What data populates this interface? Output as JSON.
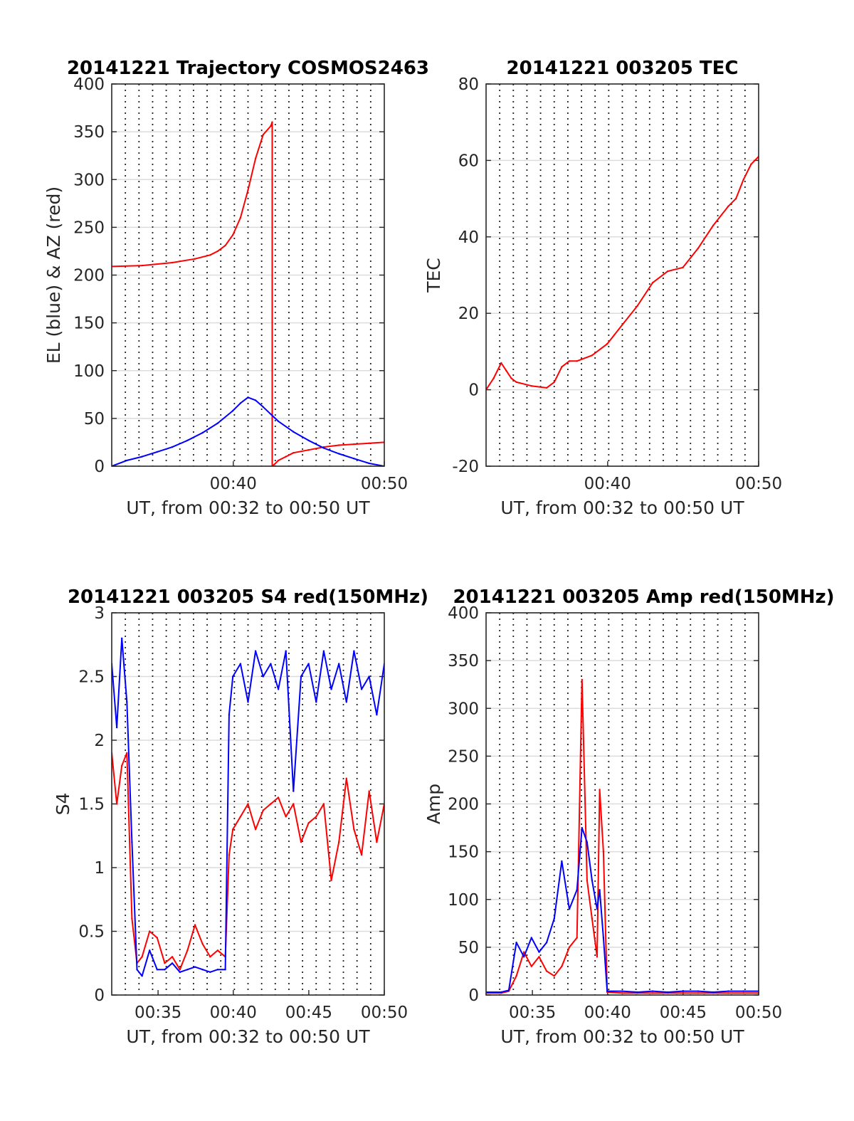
{
  "figure": {
    "title": "",
    "background": "#ffffff"
  },
  "chart_data": [
    {
      "type": "line",
      "title": "20141221 Trajectory COSMOS2463",
      "xlabel": "UT, from 00:32 to 00:50 UT",
      "ylabel": "EL (blue) & AZ (red)",
      "xlim": [
        "00:32",
        "00:50"
      ],
      "ylim": [
        0,
        400
      ],
      "xtick_labels": [
        "00:40",
        "00:50"
      ],
      "ytick_labels": [
        "0",
        "50",
        "100",
        "150",
        "200",
        "250",
        "300",
        "350",
        "400"
      ],
      "grid": "y-solid, x-dotted (every 0.9 min)",
      "series": [
        {
          "color": "#ff0000",
          "x": [
            "00:32:00",
            "00:34:00",
            "00:36:00",
            "00:37:30",
            "00:38:30",
            "00:39:00",
            "00:39:30",
            "00:40:00",
            "00:40:30",
            "00:41:00",
            "00:41:30",
            "00:42:00",
            "00:42:30",
            "00:42:36",
            "00:42:36",
            "00:42:36",
            "00:42:45",
            "00:43:00",
            "00:43:30",
            "00:44:00",
            "00:45:00",
            "00:46:00",
            "00:47:00",
            "00:48:00",
            "00:49:00",
            "00:50:00"
          ],
          "values": [
            209,
            210,
            213,
            217,
            221,
            225,
            231,
            242,
            260,
            289,
            322,
            347,
            356,
            360,
            360,
            0,
            2,
            6,
            10,
            14,
            17,
            20,
            22,
            23,
            24,
            25
          ]
        },
        {
          "color": "#0000ff",
          "x": [
            "00:32:00",
            "00:33:00",
            "00:34:00",
            "00:35:00",
            "00:36:00",
            "00:37:00",
            "00:38:00",
            "00:39:00",
            "00:40:00",
            "00:40:30",
            "00:41:00",
            "00:41:30",
            "00:42:00",
            "00:43:00",
            "00:44:00",
            "00:45:00",
            "00:46:00",
            "00:47:00",
            "00:48:00",
            "00:49:00",
            "00:50:00"
          ],
          "values": [
            0,
            6,
            10,
            15,
            20,
            27,
            35,
            45,
            58,
            66,
            72,
            69,
            62,
            47,
            36,
            27,
            19,
            13,
            8,
            3,
            0
          ]
        }
      ]
    },
    {
      "type": "line",
      "title": "20141221 003205 TEC",
      "xlabel": "UT, from 00:32 to 00:50 UT",
      "ylabel": "TEC",
      "xlim": [
        "00:32",
        "00:50"
      ],
      "ylim": [
        -20,
        80
      ],
      "xtick_labels": [
        "00:40",
        "00:50"
      ],
      "ytick_labels": [
        "-20",
        "0",
        "20",
        "40",
        "60",
        "80"
      ],
      "grid": "y-solid, x-dotted (every 0.9 min)",
      "series": [
        {
          "color": "#ff0000",
          "x": [
            "00:32:00",
            "00:32:30",
            "00:33:00",
            "00:33:20",
            "00:33:40",
            "00:34:00",
            "00:35:00",
            "00:36:00",
            "00:36:30",
            "00:37:00",
            "00:37:30",
            "00:38:00",
            "00:39:00",
            "00:40:00",
            "00:41:00",
            "00:42:00",
            "00:43:00",
            "00:44:00",
            "00:45:00",
            "00:46:00",
            "00:47:00",
            "00:48:00",
            "00:48:30",
            "00:49:00",
            "00:49:30",
            "00:50:00"
          ],
          "values": [
            0,
            3,
            7,
            5,
            3,
            2,
            1,
            0.5,
            2,
            6,
            7.5,
            7.5,
            9,
            12,
            17,
            22,
            28,
            31,
            32,
            37,
            43,
            48,
            50,
            55,
            59,
            61
          ]
        }
      ]
    },
    {
      "type": "line",
      "title": "20141221 003205 S4 red(150MHz)",
      "xlabel": "UT, from 00:32 to 00:50 UT",
      "ylabel": "S4",
      "xlim": [
        "00:32",
        "00:50"
      ],
      "ylim": [
        0,
        3
      ],
      "xtick_labels": [
        "00:35",
        "00:40",
        "00:45",
        "00:50"
      ],
      "ytick_labels": [
        "0",
        "0.5",
        "1",
        "1.5",
        "2",
        "2.5",
        "3"
      ],
      "grid": "y-solid, x-dotted (every 0.9 min)",
      "series": [
        {
          "color": "#ff0000",
          "x": [
            "00:32:00",
            "00:32:20",
            "00:32:40",
            "00:33:00",
            "00:33:20",
            "00:33:40",
            "00:34:00",
            "00:34:30",
            "00:35:00",
            "00:35:30",
            "00:36:00",
            "00:36:30",
            "00:37:00",
            "00:37:30",
            "00:38:00",
            "00:38:30",
            "00:39:00",
            "00:39:30",
            "00:39:45",
            "00:40:00",
            "00:40:30",
            "00:41:00",
            "00:41:30",
            "00:42:00",
            "00:42:30",
            "00:43:00",
            "00:43:30",
            "00:44:00",
            "00:44:30",
            "00:45:00",
            "00:45:30",
            "00:46:00",
            "00:46:30",
            "00:47:00",
            "00:47:30",
            "00:48:00",
            "00:48:30",
            "00:49:00",
            "00:49:30",
            "00:50:00"
          ],
          "values": [
            1.9,
            1.5,
            1.8,
            1.9,
            0.6,
            0.25,
            0.3,
            0.5,
            0.45,
            0.25,
            0.3,
            0.2,
            0.35,
            0.55,
            0.4,
            0.3,
            0.35,
            0.3,
            1.1,
            1.3,
            1.4,
            1.5,
            1.3,
            1.45,
            1.5,
            1.55,
            1.4,
            1.5,
            1.2,
            1.35,
            1.4,
            1.5,
            0.9,
            1.2,
            1.7,
            1.3,
            1.1,
            1.6,
            1.2,
            1.5
          ]
        },
        {
          "color": "#0000ff",
          "x": [
            "00:32:00",
            "00:32:20",
            "00:32:40",
            "00:33:00",
            "00:33:20",
            "00:33:40",
            "00:34:00",
            "00:34:30",
            "00:35:00",
            "00:35:30",
            "00:36:00",
            "00:36:30",
            "00:37:00",
            "00:37:30",
            "00:38:00",
            "00:38:30",
            "00:39:00",
            "00:39:30",
            "00:39:45",
            "00:40:00",
            "00:40:30",
            "00:41:00",
            "00:41:30",
            "00:42:00",
            "00:42:30",
            "00:43:00",
            "00:43:30",
            "00:44:00",
            "00:44:30",
            "00:45:00",
            "00:45:30",
            "00:46:00",
            "00:46:30",
            "00:47:00",
            "00:47:30",
            "00:48:00",
            "00:48:30",
            "00:49:00",
            "00:49:30",
            "00:50:00"
          ],
          "values": [
            2.6,
            2.1,
            2.8,
            2.3,
            1.2,
            0.2,
            0.15,
            0.35,
            0.2,
            0.2,
            0.25,
            0.18,
            0.2,
            0.22,
            0.2,
            0.18,
            0.2,
            0.2,
            2.2,
            2.5,
            2.6,
            2.3,
            2.7,
            2.5,
            2.6,
            2.4,
            2.7,
            1.6,
            2.5,
            2.6,
            2.3,
            2.7,
            2.4,
            2.6,
            2.3,
            2.7,
            2.4,
            2.5,
            2.2,
            2.6
          ]
        }
      ]
    },
    {
      "type": "line",
      "title": "20141221 003205 Amp red(150MHz)",
      "xlabel": "UT, from 00:32 to 00:50 UT",
      "ylabel": "Amp",
      "xlim": [
        "00:32",
        "00:50"
      ],
      "ylim": [
        0,
        400
      ],
      "xtick_labels": [
        "00:35",
        "00:40",
        "00:45",
        "00:50"
      ],
      "ytick_labels": [
        "0",
        "50",
        "100",
        "150",
        "200",
        "250",
        "300",
        "350",
        "400"
      ],
      "grid": "y-solid, x-dotted (every 0.9 min)",
      "series": [
        {
          "color": "#ff0000",
          "x": [
            "00:32:00",
            "00:33:00",
            "00:33:30",
            "00:34:00",
            "00:34:30",
            "00:35:00",
            "00:35:30",
            "00:36:00",
            "00:36:30",
            "00:37:00",
            "00:37:30",
            "00:38:00",
            "00:38:20",
            "00:38:40",
            "00:39:00",
            "00:39:20",
            "00:39:30",
            "00:39:45",
            "00:40:00",
            "00:41:00",
            "00:42:00",
            "00:43:00",
            "00:44:00",
            "00:45:00",
            "00:46:00",
            "00:47:00",
            "00:48:00",
            "00:49:00",
            "00:50:00"
          ],
          "values": [
            2,
            2,
            4,
            20,
            45,
            30,
            40,
            25,
            20,
            30,
            50,
            60,
            330,
            120,
            80,
            40,
            215,
            150,
            3,
            2,
            2,
            2,
            2,
            2,
            2,
            2,
            2,
            2,
            2
          ]
        },
        {
          "color": "#0000ff",
          "x": [
            "00:32:00",
            "00:33:00",
            "00:33:30",
            "00:34:00",
            "00:34:30",
            "00:35:00",
            "00:35:30",
            "00:36:00",
            "00:36:30",
            "00:37:00",
            "00:37:30",
            "00:38:00",
            "00:38:20",
            "00:38:40",
            "00:39:00",
            "00:39:20",
            "00:39:30",
            "00:39:45",
            "00:40:00",
            "00:41:00",
            "00:42:00",
            "00:43:00",
            "00:44:00",
            "00:45:00",
            "00:46:00",
            "00:47:00",
            "00:48:00",
            "00:49:00",
            "00:50:00"
          ],
          "values": [
            3,
            3,
            5,
            55,
            40,
            60,
            45,
            55,
            80,
            140,
            90,
            110,
            175,
            160,
            120,
            90,
            110,
            60,
            4,
            4,
            3,
            4,
            3,
            4,
            4,
            3,
            4,
            4,
            4
          ]
        }
      ]
    }
  ]
}
